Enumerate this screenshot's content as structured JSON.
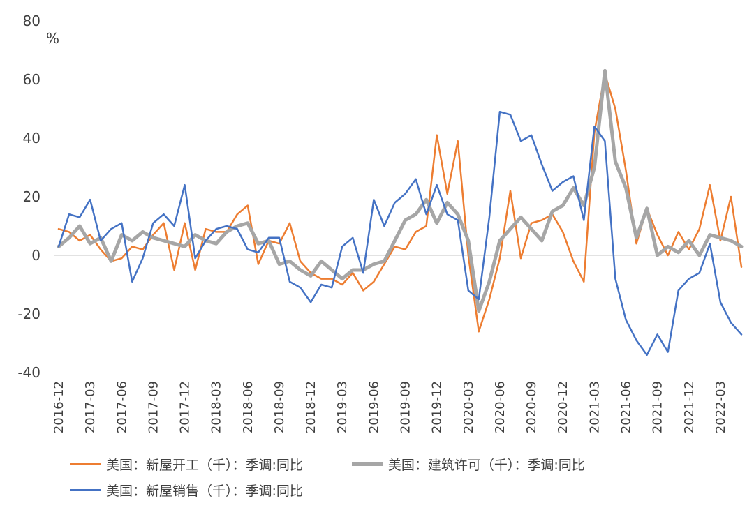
{
  "chart_data": {
    "type": "line",
    "title": "",
    "unit_label": "%",
    "ylim": [
      -40,
      80
    ],
    "yticks": [
      80,
      60,
      40,
      20,
      0,
      -20,
      -40
    ],
    "grid": "zero-line-only",
    "legend_position": "bottom",
    "x_tick_every": 3,
    "x": [
      "2016-12",
      "2017-01",
      "2017-02",
      "2017-03",
      "2017-04",
      "2017-05",
      "2017-06",
      "2017-07",
      "2017-08",
      "2017-09",
      "2017-10",
      "2017-11",
      "2017-12",
      "2018-01",
      "2018-02",
      "2018-03",
      "2018-04",
      "2018-05",
      "2018-06",
      "2018-07",
      "2018-08",
      "2018-09",
      "2018-10",
      "2018-11",
      "2018-12",
      "2019-01",
      "2019-02",
      "2019-03",
      "2019-04",
      "2019-05",
      "2019-06",
      "2019-07",
      "2019-08",
      "2019-09",
      "2019-10",
      "2019-11",
      "2019-12",
      "2020-01",
      "2020-02",
      "2020-03",
      "2020-04",
      "2020-05",
      "2020-06",
      "2020-07",
      "2020-08",
      "2020-09",
      "2020-10",
      "2020-11",
      "2020-12",
      "2021-01",
      "2021-02",
      "2021-03",
      "2021-04",
      "2021-05",
      "2021-06",
      "2021-07",
      "2021-08",
      "2021-09",
      "2021-10",
      "2021-11",
      "2021-12",
      "2022-01",
      "2022-02",
      "2022-03",
      "2022-04",
      "2022-05"
    ],
    "series": [
      {
        "name": "美国：新屋开工（千）：季调:同比",
        "color": "#ED7D31",
        "line_width": 2.5,
        "values": [
          9,
          8,
          5,
          7,
          2,
          -2,
          -1,
          3,
          2,
          7,
          11,
          -5,
          11,
          -5,
          9,
          8,
          8,
          14,
          17,
          -3,
          5,
          4,
          11,
          -2,
          -6,
          -8,
          -8,
          -10,
          -6,
          -12,
          -9,
          -3,
          3,
          2,
          8,
          10,
          41,
          21,
          39,
          0,
          -26,
          -15,
          -1,
          22,
          -1,
          11,
          12,
          14,
          8,
          -2,
          -9,
          42,
          62,
          50,
          29,
          4,
          16,
          7,
          0,
          8,
          2,
          9,
          24,
          5,
          20,
          -4
        ]
      },
      {
        "name": "美国：建筑许可（千）：季调:同比",
        "color": "#A6A6A6",
        "line_width": 5,
        "values": [
          3,
          6,
          10,
          4,
          6,
          -2,
          7,
          5,
          8,
          6,
          5,
          4,
          3,
          7,
          5,
          4,
          8,
          10,
          11,
          4,
          5,
          -3,
          -2,
          -5,
          -7,
          -2,
          -5,
          -8,
          -5,
          -5,
          -3,
          -2,
          5,
          12,
          14,
          19,
          11,
          18,
          14,
          5,
          -19,
          -9,
          5,
          9,
          13,
          9,
          5,
          15,
          17,
          23,
          17,
          30,
          63,
          32,
          23,
          6,
          16,
          0,
          3,
          1,
          5,
          0,
          7,
          6,
          5,
          3
        ]
      },
      {
        "name": "美国：新屋销售（千）：季调:同比",
        "color": "#4472C4",
        "line_width": 2.5,
        "values": [
          3,
          14,
          13,
          19,
          5,
          9,
          11,
          -9,
          -1,
          11,
          14,
          10,
          24,
          -1,
          5,
          9,
          10,
          9,
          2,
          1,
          6,
          6,
          -9,
          -11,
          -16,
          -10,
          -11,
          3,
          6,
          -6,
          19,
          10,
          18,
          21,
          26,
          14,
          24,
          14,
          12,
          -12,
          -15,
          13,
          49,
          48,
          39,
          41,
          31,
          22,
          25,
          27,
          12,
          44,
          39,
          -8,
          -22,
          -29,
          -34,
          -27,
          -33,
          -12,
          -8,
          -6,
          4,
          -16,
          -23,
          -27
        ]
      }
    ]
  }
}
